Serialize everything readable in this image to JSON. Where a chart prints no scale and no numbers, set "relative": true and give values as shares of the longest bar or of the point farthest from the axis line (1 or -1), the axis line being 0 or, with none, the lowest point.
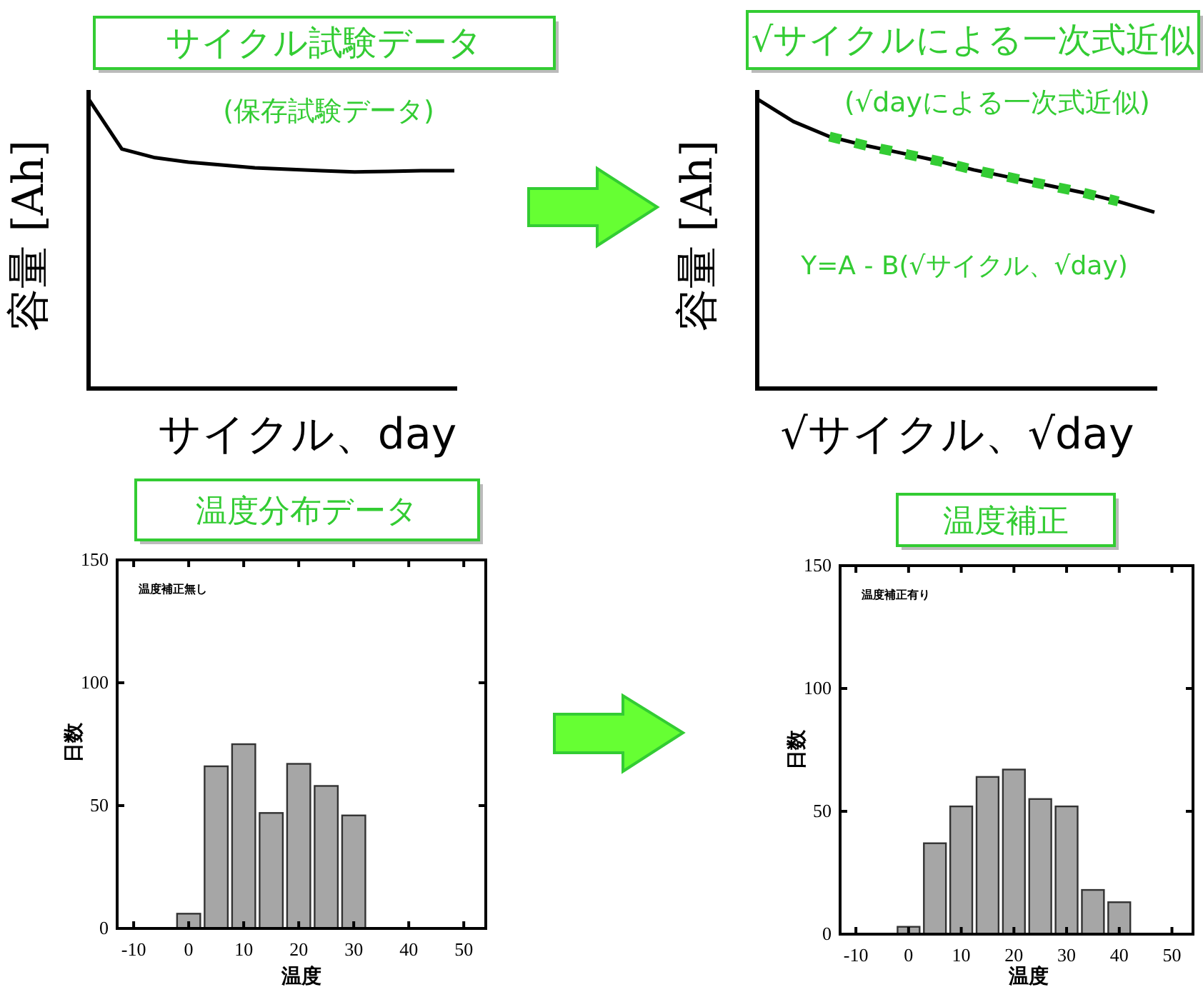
{
  "chart_data": [
    {
      "type": "line",
      "title": "サイクル試験データ",
      "subtitle": "(保存試験データ)",
      "xlabel": "サイクル、day",
      "ylabel": "容量 [Ah]",
      "relative": true,
      "categories": [
        null,
        null,
        null,
        null,
        null,
        null,
        null,
        null,
        null,
        null,
        null,
        null
      ],
      "series": [
        {
          "color": "#000000",
          "values": [
            1.0,
            0.827,
            0.797,
            0.782,
            0.772,
            0.762,
            0.757,
            0.752,
            0.748,
            0.75,
            0.752,
            0.752
          ]
        }
      ]
    },
    {
      "type": "line",
      "title": "√サイクルによる一次式近似",
      "subtitle": "(√dayによる一次式近似)",
      "xlabel": "√サイクル、√day",
      "ylabel": "容量 [Ah]",
      "relative": true,
      "annotations": [
        "Y=A - B(√サイクル、√day)"
      ],
      "categories": [
        null,
        null,
        null,
        null,
        null,
        null,
        null,
        null,
        null,
        null,
        null,
        null
      ],
      "series": [
        {
          "color": "#000000",
          "values": [
            1.0,
            0.922,
            0.87,
            0.839,
            0.813,
            0.786,
            0.755,
            0.729,
            0.703,
            0.677,
            0.646,
            0.609
          ]
        },
        {
          "color": "#33cc33",
          "line_style": "dashed",
          "values": [
            null,
            null,
            0.87,
            0.839,
            0.813,
            0.786,
            0.755,
            0.729,
            0.703,
            0.677,
            0.646,
            null
          ]
        }
      ]
    },
    {
      "type": "histogram",
      "title": "温度分布データ",
      "xlabel": "温度",
      "ylabel": "日数",
      "annotations": [
        "温度補正無し"
      ],
      "color": "#a6a6a6",
      "bins": [
        -2.5,
        2.5,
        7.5,
        12.5,
        17.5,
        22.5,
        27.5,
        32.5
      ],
      "values": [
        6,
        66,
        75,
        47,
        67,
        58,
        46
      ],
      "xlim": [
        -13,
        54
      ],
      "xticks": [
        -10,
        0,
        10,
        20,
        30,
        40,
        50
      ],
      "ylim": [
        0,
        150
      ],
      "yticks": [
        0,
        50,
        100,
        150
      ]
    },
    {
      "type": "histogram",
      "title": "温度補正",
      "xlabel": "温度",
      "ylabel": "日数",
      "annotations": [
        "温度補正有り"
      ],
      "color": "#a6a6a6",
      "bins": [
        -2.5,
        2.5,
        7.5,
        12.5,
        17.5,
        22.5,
        27.5,
        32.5,
        37.5,
        42.5
      ],
      "values": [
        3,
        37,
        52,
        64,
        67,
        55,
        52,
        18,
        13
      ],
      "xlim": [
        -13,
        54
      ],
      "xticks": [
        -10,
        0,
        10,
        20,
        30,
        40,
        50
      ],
      "ylim": [
        0,
        150
      ],
      "yticks": [
        0,
        50,
        100,
        150
      ]
    }
  ]
}
